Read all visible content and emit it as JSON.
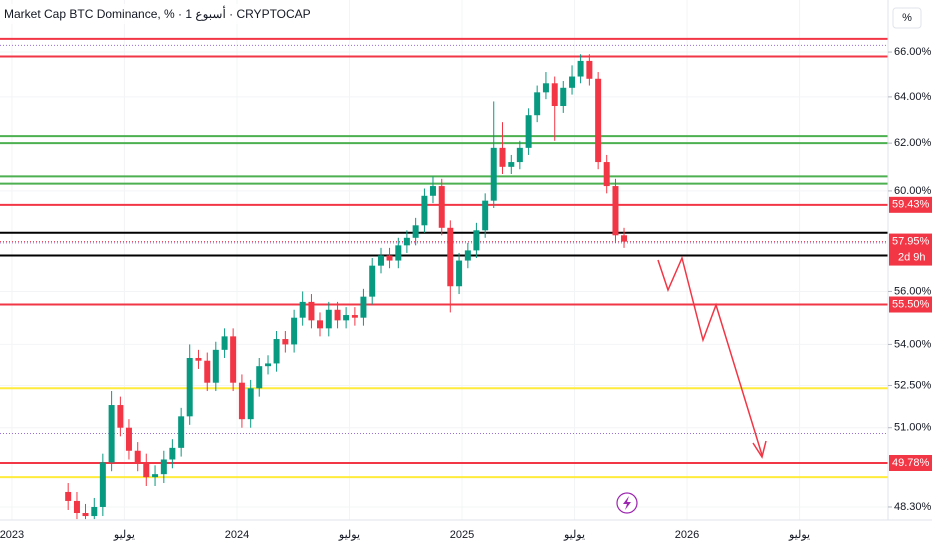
{
  "chart_data": {
    "type": "candlestick",
    "title": "Market Cap BTC Dominance, % · 1 أسبوع · CRYPTOCAP",
    "axis_label": "%",
    "log_y": true,
    "ylim": [
      47.87,
      68.4
    ],
    "yticks": [
      {
        "value": 66,
        "label": "66.00%"
      },
      {
        "value": 64,
        "label": "64.00%"
      },
      {
        "value": 62,
        "label": "62.00%"
      },
      {
        "value": 60,
        "label": "60.00%"
      },
      {
        "value": 56,
        "label": "56.00%"
      },
      {
        "value": 54,
        "label": "54.00%"
      },
      {
        "value": 52.5,
        "label": "52.50%"
      },
      {
        "value": 51,
        "label": "51.00%"
      },
      {
        "value": 48.3,
        "label": "48.30%"
      }
    ],
    "xlim": [
      2022.947,
      2026.893
    ],
    "xticks": [
      2023,
      {
        "value": 2023.5,
        "label": "يوليو"
      },
      2024,
      {
        "value": 2024.5,
        "label": "يوليو"
      },
      2025,
      {
        "value": 2025.5,
        "label": "يوليو"
      },
      2026,
      {
        "value": 2026.5,
        "label": "يوليو"
      }
    ],
    "up_color": "#089981",
    "down_color": "#f23645",
    "x": [
      2023.25,
      2023.289,
      2023.327,
      2023.366,
      2023.404,
      2023.443,
      2023.482,
      2023.52,
      2023.559,
      2023.597,
      2023.636,
      2023.675,
      2023.713,
      2023.752,
      2023.79,
      2023.829,
      2023.868,
      2023.906,
      2023.945,
      2023.983,
      2024.022,
      2024.061,
      2024.099,
      2024.138,
      2024.176,
      2024.215,
      2024.254,
      2024.292,
      2024.331,
      2024.369,
      2024.408,
      2024.447,
      2024.485,
      2024.524,
      2024.562,
      2024.601,
      2024.64,
      2024.678,
      2024.717,
      2024.755,
      2024.794,
      2024.833,
      2024.871,
      2024.91,
      2024.948,
      2024.987,
      2025.026,
      2025.064,
      2025.103,
      2025.141,
      2025.18,
      2025.219,
      2025.257,
      2025.296,
      2025.334,
      2025.373,
      2025.412,
      2025.45,
      2025.489,
      2025.527,
      2025.566,
      2025.605,
      2025.643,
      2025.682,
      2025.72
    ],
    "open": [
      48.8,
      48.5,
      48.1,
      48.0,
      48.3,
      49.8,
      51.8,
      51.0,
      50.2,
      49.8,
      49.3,
      49.4,
      49.9,
      50.3,
      51.4,
      53.5,
      53.4,
      52.6,
      53.8,
      54.3,
      52.6,
      51.3,
      52.4,
      53.2,
      53.3,
      54.2,
      54.0,
      55.0,
      55.6,
      54.9,
      54.6,
      55.3,
      54.9,
      55.1,
      55.0,
      55.8,
      57.0,
      57.4,
      57.2,
      57.8,
      58.1,
      58.6,
      59.8,
      60.2,
      58.5,
      56.2,
      57.2,
      57.6,
      58.4,
      59.6,
      61.8,
      61.0,
      61.2,
      61.8,
      63.2,
      64.2,
      64.6,
      63.6,
      64.4,
      64.9,
      65.6,
      64.8,
      61.2,
      60.2,
      58.2
    ],
    "high": [
      49.1,
      48.8,
      48.4,
      48.6,
      50.1,
      52.3,
      52.1,
      51.3,
      50.5,
      50.1,
      49.7,
      50.2,
      50.6,
      51.7,
      54.0,
      53.8,
      53.7,
      54.1,
      54.6,
      54.6,
      52.9,
      52.7,
      53.5,
      53.6,
      54.5,
      54.5,
      55.3,
      56.0,
      55.9,
      55.2,
      55.6,
      55.6,
      55.4,
      55.4,
      56.1,
      57.3,
      57.7,
      57.7,
      58.1,
      58.4,
      58.9,
      60.1,
      60.6,
      60.5,
      58.8,
      57.5,
      57.9,
      58.7,
      59.9,
      63.8,
      62.9,
      61.5,
      62.1,
      63.5,
      64.5,
      65.1,
      64.9,
      64.7,
      65.4,
      65.9,
      65.9,
      65.1,
      61.5,
      60.5,
      58.5
    ],
    "low": [
      48.2,
      47.9,
      47.9,
      47.9,
      48.0,
      49.5,
      50.7,
      49.9,
      49.5,
      49.0,
      49.0,
      49.1,
      49.6,
      50.0,
      51.1,
      53.1,
      52.3,
      52.3,
      53.5,
      52.3,
      51.0,
      51.0,
      52.1,
      52.9,
      53.0,
      53.7,
      53.7,
      54.7,
      54.6,
      54.3,
      54.3,
      54.6,
      54.6,
      54.7,
      54.7,
      55.5,
      56.7,
      56.9,
      56.9,
      57.5,
      57.8,
      58.3,
      59.5,
      58.2,
      55.2,
      55.9,
      56.9,
      57.3,
      58.1,
      59.3,
      60.7,
      60.7,
      60.9,
      61.5,
      62.9,
      63.9,
      62.1,
      63.3,
      64.1,
      64.6,
      64.5,
      60.9,
      59.9,
      57.9,
      57.7
    ],
    "close": [
      48.5,
      48.1,
      48.0,
      48.3,
      49.8,
      51.8,
      51.0,
      50.2,
      49.8,
      49.3,
      49.4,
      49.9,
      50.3,
      51.4,
      53.5,
      53.4,
      52.6,
      53.8,
      54.3,
      52.6,
      51.3,
      52.4,
      53.2,
      53.3,
      54.2,
      54.0,
      55.0,
      55.6,
      54.9,
      54.6,
      55.3,
      54.9,
      55.1,
      55.0,
      55.8,
      57.0,
      57.4,
      57.2,
      57.8,
      58.1,
      58.6,
      59.8,
      60.2,
      58.5,
      56.2,
      57.2,
      57.6,
      58.4,
      59.6,
      61.8,
      61.0,
      61.2,
      61.8,
      63.2,
      64.2,
      64.6,
      63.6,
      64.4,
      64.9,
      65.6,
      64.8,
      61.2,
      60.2,
      58.2,
      57.95
    ],
    "levels": [
      {
        "value": 66.6,
        "color": "#f23645",
        "style": "solid"
      },
      {
        "value": 66.3,
        "color": "#9c6fd6",
        "style": "dotted"
      },
      {
        "value": 65.8,
        "color": "#f23645",
        "style": "solid"
      },
      {
        "value": 62.3,
        "color": "#4caf50",
        "style": "solid"
      },
      {
        "value": 62.0,
        "color": "#4caf50",
        "style": "solid"
      },
      {
        "value": 60.6,
        "color": "#4caf50",
        "style": "solid"
      },
      {
        "value": 60.3,
        "color": "#4caf50",
        "style": "solid"
      },
      {
        "value": 59.43,
        "color": "#f23645",
        "style": "solid",
        "label": "59.43%"
      },
      {
        "value": 58.3,
        "color": "#000000",
        "style": "solid"
      },
      {
        "value": 57.9,
        "color": "#9c6fd6",
        "style": "dotted"
      },
      {
        "value": 57.4,
        "color": "#000000",
        "style": "solid"
      },
      {
        "value": 55.5,
        "color": "#f23645",
        "style": "solid",
        "label": "55.50%"
      },
      {
        "value": 52.4,
        "color": "#ffeb3b",
        "style": "solid"
      },
      {
        "value": 50.8,
        "color": "#9c6fd6",
        "style": "dotted"
      },
      {
        "value": 49.78,
        "color": "#f23645",
        "style": "solid",
        "label": "49.78%"
      },
      {
        "value": 49.3,
        "color": "#ffeb3b",
        "style": "solid"
      }
    ],
    "last_price": {
      "value": 57.95,
      "label": "57.95%",
      "countdown": "2d 9h",
      "color": "#f23645"
    }
  }
}
